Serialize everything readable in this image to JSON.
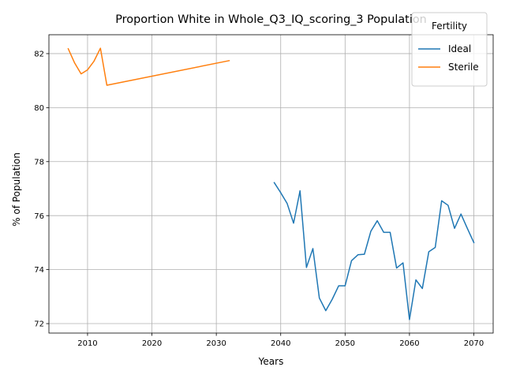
{
  "chart_data": {
    "type": "line",
    "title": "Proportion White in Whole_Q3_IQ_scoring_3 Population",
    "xlabel": "Years",
    "ylabel": "% of Population",
    "xlim": [
      2004,
      2073
    ],
    "ylim": [
      71.65,
      82.7
    ],
    "xticks": [
      2010,
      2020,
      2030,
      2040,
      2050,
      2060,
      2070
    ],
    "yticks": [
      72,
      74,
      76,
      78,
      80,
      82
    ],
    "grid": true,
    "legend": {
      "title": "Fertility",
      "placement": "top-right"
    },
    "series": [
      {
        "name": "Ideal",
        "color": "#1f77b4",
        "x": [
          2039,
          2040,
          2041,
          2042,
          2043,
          2044,
          2045,
          2046,
          2047,
          2048,
          2049,
          2050,
          2051,
          2052,
          2053,
          2054,
          2055,
          2056,
          2057,
          2058,
          2059,
          2060,
          2061,
          2062,
          2063,
          2064,
          2065,
          2066,
          2067,
          2068,
          2069,
          2070
        ],
        "y": [
          77.22,
          76.85,
          76.45,
          75.72,
          76.92,
          74.08,
          74.78,
          72.95,
          72.48,
          72.9,
          73.4,
          73.4,
          74.33,
          74.55,
          74.57,
          75.42,
          75.81,
          75.38,
          75.38,
          74.06,
          74.25,
          72.15,
          73.62,
          73.3,
          74.66,
          74.82,
          76.55,
          76.38,
          75.53,
          76.06,
          75.52,
          75.0
        ]
      },
      {
        "name": "Sterile",
        "color": "#ff7f0e",
        "x": [
          2007,
          2008,
          2009,
          2010,
          2011,
          2012,
          2013,
          2032
        ],
        "y": [
          82.18,
          81.65,
          81.25,
          81.4,
          81.72,
          82.2,
          80.83,
          81.74
        ]
      }
    ]
  }
}
